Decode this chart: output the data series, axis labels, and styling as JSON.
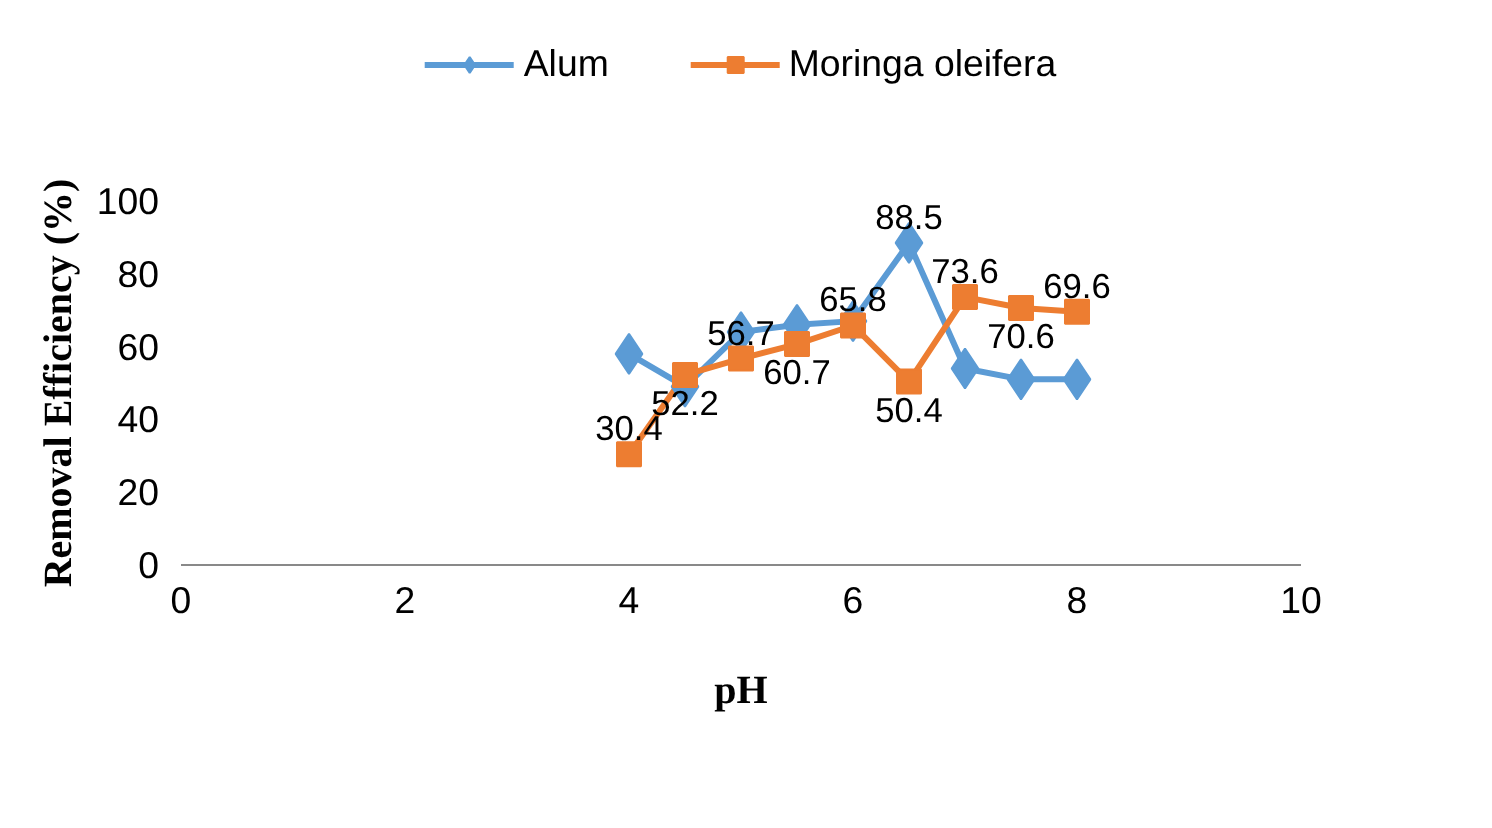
{
  "chart_data": {
    "type": "line",
    "xlabel": "pH",
    "ylabel": "Removal Efficiency (%)",
    "x": [
      4,
      4.5,
      5,
      5.5,
      6,
      6.5,
      7,
      7.5,
      8
    ],
    "series": [
      {
        "name": "Alum",
        "color": "#5b9bd5",
        "marker": "diamond",
        "values": [
          58,
          49,
          64,
          66,
          67,
          88.5,
          54,
          51,
          51
        ],
        "value_labels": [
          null,
          null,
          null,
          null,
          null,
          "88.5",
          null,
          null,
          null
        ]
      },
      {
        "name": "Moringa oleifera",
        "color": "#ed7d31",
        "marker": "square",
        "values": [
          30.4,
          52.2,
          56.7,
          60.7,
          65.8,
          50.4,
          73.6,
          70.6,
          69.6
        ],
        "value_labels": [
          "30.4",
          "52.2",
          "56.7",
          "60.7",
          "65.8",
          "50.4",
          "73.6",
          "70.6",
          "69.6"
        ]
      }
    ],
    "xlim": [
      0,
      10
    ],
    "xticks": [
      0,
      2,
      4,
      6,
      8,
      10
    ],
    "ylim": [
      0,
      100
    ],
    "yticks": [
      0,
      20,
      40,
      60,
      80,
      100
    ],
    "grid": false,
    "legend": "top"
  }
}
